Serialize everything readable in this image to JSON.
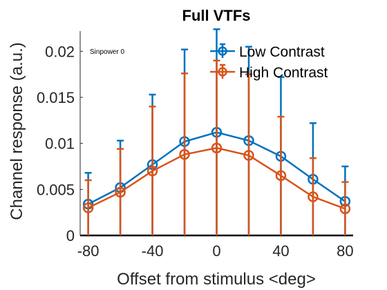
{
  "chart_data": {
    "type": "line",
    "title": "Full VTFs",
    "xlabel": "Offset from stimulus <deg>",
    "ylabel": "Channel response (a.u.)",
    "annotation": "Sinpower 0",
    "x": [
      -80,
      -60,
      -40,
      -20,
      0,
      20,
      40,
      60,
      80
    ],
    "xlim": [
      -85,
      85
    ],
    "ylim": [
      0,
      0.0222
    ],
    "xticks": [
      -80,
      -40,
      0,
      40,
      80
    ],
    "xtick_labels": [
      "-80",
      "-40",
      "0",
      "40",
      "80"
    ],
    "yticks": [
      0,
      0.005,
      0.01,
      0.015,
      0.02
    ],
    "ytick_labels": [
      "0",
      "0.005",
      "0.01",
      "0.015",
      "0.02"
    ],
    "grid": false,
    "legend_position": "top-right",
    "series": [
      {
        "name": "Low Contrast",
        "color": "#0072BD",
        "values": [
          0.0034,
          0.0052,
          0.0077,
          0.0102,
          0.0112,
          0.0103,
          0.0086,
          0.0061,
          0.0037
        ],
        "err_upper": [
          0.0068,
          0.0103,
          0.0153,
          0.0202,
          0.0224,
          0.0205,
          0.0172,
          0.0122,
          0.0075
        ],
        "err_lower": [
          0,
          0,
          0,
          0,
          0,
          0,
          0,
          0,
          0
        ]
      },
      {
        "name": "High Contrast",
        "color": "#D95319",
        "values": [
          0.003,
          0.0047,
          0.007,
          0.0088,
          0.0095,
          0.0087,
          0.0065,
          0.0042,
          0.0029
        ],
        "err_upper": [
          0.006,
          0.0094,
          0.014,
          0.0176,
          0.019,
          0.0175,
          0.0129,
          0.0084,
          0.0058
        ],
        "err_lower": [
          0,
          0,
          0,
          0,
          0,
          0,
          0,
          0,
          0
        ]
      }
    ]
  }
}
